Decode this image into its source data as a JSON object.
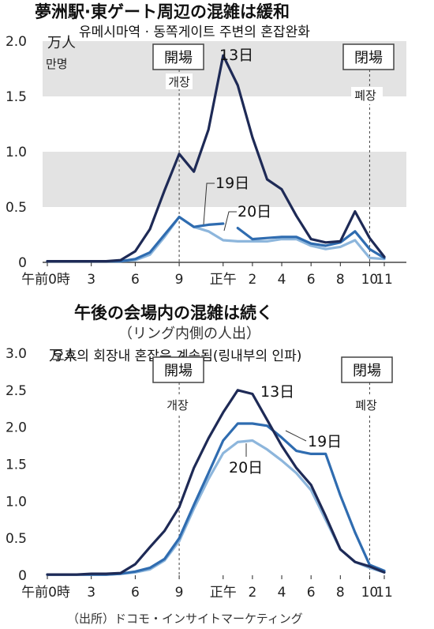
{
  "top": {
    "title": "夢洲駅·東ゲート周辺の混雑は緩和",
    "title_ko": "유메시마역 · 동쪽게이트 주변의 혼잡완화",
    "unit": "万人",
    "unit_ko": "만명",
    "open_label": "開場",
    "open_label_ko": "개장",
    "close_label": "閉場",
    "close_label_ko": "폐장"
  },
  "bottom": {
    "title": "午後の会場内の混雑は続く",
    "subtitle": "（リング内側の人出）",
    "unit": "万人",
    "title_ko": "오후의 회장내 혼잡은 계속됨(링내부의 인파)",
    "open_label": "開場",
    "open_label_ko": "개장",
    "close_label": "閉場",
    "close_label_ko": "폐장"
  },
  "source": "（出所）ドコモ・インサイトマーケティング",
  "colors": {
    "d13": "#1e2a56",
    "d19": "#2f6cb0",
    "d20": "#8db6dc",
    "band": "#e3e3e3"
  },
  "chart_data": [
    {
      "type": "line",
      "title": "夢洲駅·東ゲート周辺の混雑は緩和",
      "ylabel": "万人",
      "ylim": [
        0,
        2.0
      ],
      "yticks": [
        "0",
        "0.5",
        "1.0",
        "1.5",
        "2.0"
      ],
      "xticks": [
        "午前0時",
        "3",
        "6",
        "9",
        "正午",
        "2",
        "4",
        "6",
        "8",
        "10",
        "11"
      ],
      "x": [
        0,
        1,
        2,
        3,
        4,
        5,
        6,
        7,
        8,
        9,
        10,
        11,
        12,
        13,
        14,
        15,
        16,
        17,
        18,
        19,
        20,
        21,
        22,
        23
      ],
      "series": [
        {
          "name": "13日",
          "values": [
            0.01,
            0.01,
            0.01,
            0.01,
            0.01,
            0.02,
            0.1,
            0.3,
            0.65,
            0.98,
            0.82,
            1.2,
            1.87,
            1.6,
            1.13,
            0.75,
            0.66,
            0.42,
            0.21,
            0.18,
            0.19,
            0.46,
            0.22,
            0.05
          ]
        },
        {
          "name": "19日",
          "values": [
            0.01,
            0.01,
            0.01,
            0.01,
            0.01,
            0.01,
            0.03,
            0.09,
            0.25,
            0.41,
            0.32,
            0.34,
            0.35,
            0.31,
            0.21,
            0.22,
            0.23,
            0.23,
            0.17,
            0.15,
            0.18,
            0.28,
            0.12,
            0.04
          ]
        },
        {
          "name": "20日",
          "values": [
            0.01,
            0.01,
            0.01,
            0.01,
            0.01,
            0.01,
            0.02,
            0.07,
            0.23,
            0.41,
            0.32,
            0.28,
            0.2,
            0.19,
            0.19,
            0.19,
            0.21,
            0.21,
            0.15,
            0.12,
            0.14,
            0.2,
            0.04,
            0.03
          ]
        }
      ],
      "gaps": [
        {
          "series": "19日",
          "from_index": 12,
          "to_index": 13
        }
      ]
    },
    {
      "type": "line",
      "title": "午後の会場内の混雑は続く",
      "subtitle": "（リング内側の人出）",
      "ylabel": "万人",
      "ylim": [
        0,
        3.0
      ],
      "yticks": [
        "0",
        "0.5",
        "1.0",
        "1.5",
        "2.0",
        "2.5",
        "3.0"
      ],
      "xticks": [
        "午前0時",
        "3",
        "6",
        "9",
        "正午",
        "2",
        "4",
        "6",
        "8",
        "10",
        "11"
      ],
      "x": [
        0,
        1,
        2,
        3,
        4,
        5,
        6,
        7,
        8,
        9,
        10,
        11,
        12,
        13,
        14,
        15,
        16,
        17,
        18,
        19,
        20,
        21,
        22,
        23
      ],
      "series": [
        {
          "name": "13日",
          "values": [
            0.01,
            0.01,
            0.01,
            0.02,
            0.02,
            0.03,
            0.15,
            0.38,
            0.6,
            0.92,
            1.45,
            1.85,
            2.2,
            2.5,
            2.45,
            2.1,
            1.75,
            1.45,
            1.22,
            0.8,
            0.35,
            0.18,
            0.12,
            0.04
          ]
        },
        {
          "name": "19日",
          "values": [
            0.01,
            0.01,
            0.01,
            0.01,
            0.01,
            0.02,
            0.05,
            0.1,
            0.22,
            0.5,
            0.95,
            1.38,
            1.82,
            2.05,
            2.05,
            2.02,
            1.86,
            1.68,
            1.64,
            1.64,
            1.08,
            0.58,
            0.14,
            0.06
          ]
        },
        {
          "name": "20日",
          "values": [
            0.01,
            0.01,
            0.01,
            0.01,
            0.01,
            0.02,
            0.04,
            0.08,
            0.2,
            0.46,
            0.9,
            1.3,
            1.65,
            1.8,
            1.82,
            1.7,
            1.55,
            1.38,
            1.15,
            0.75,
            0.35,
            0.18,
            0.1,
            0.04
          ]
        }
      ]
    }
  ]
}
